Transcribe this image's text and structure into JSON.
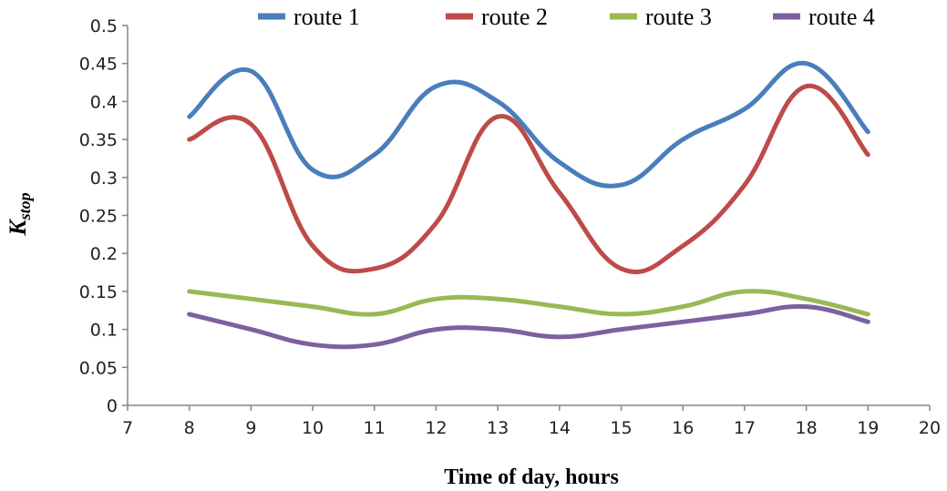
{
  "chart_data": {
    "type": "line",
    "xlabel": "Time of day, hours",
    "ylabel_main": "K",
    "ylabel_sub": "stop",
    "xlim": [
      7,
      20
    ],
    "ylim": [
      0,
      0.5
    ],
    "x_ticks": [
      "7",
      "8",
      "9",
      "10",
      "11",
      "12",
      "13",
      "14",
      "15",
      "16",
      "17",
      "18",
      "19",
      "20"
    ],
    "y_ticks": [
      "0",
      "0.05",
      "0.1",
      "0.15",
      "0.2",
      "0.25",
      "0.3",
      "0.35",
      "0.4",
      "0.45",
      "0.5"
    ],
    "grid": false,
    "legend_position": "top",
    "x": [
      8,
      9,
      10,
      11,
      12,
      13,
      14,
      15,
      16,
      17,
      18,
      19
    ],
    "series": [
      {
        "name": "route 1",
        "color": "#4a7ebb",
        "values": [
          0.38,
          0.44,
          0.31,
          0.33,
          0.42,
          0.4,
          0.32,
          0.29,
          0.35,
          0.39,
          0.45,
          0.36
        ]
      },
      {
        "name": "route 2",
        "color": "#be4b48",
        "values": [
          0.35,
          0.37,
          0.21,
          0.18,
          0.24,
          0.38,
          0.28,
          0.18,
          0.21,
          0.29,
          0.42,
          0.33
        ]
      },
      {
        "name": "route 3",
        "color": "#98b954",
        "values": [
          0.15,
          0.14,
          0.13,
          0.12,
          0.14,
          0.14,
          0.13,
          0.12,
          0.13,
          0.15,
          0.14,
          0.12
        ]
      },
      {
        "name": "route 4",
        "color": "#7d60a0",
        "values": [
          0.12,
          0.1,
          0.08,
          0.08,
          0.1,
          0.1,
          0.09,
          0.1,
          0.11,
          0.12,
          0.13,
          0.11
        ]
      }
    ]
  }
}
